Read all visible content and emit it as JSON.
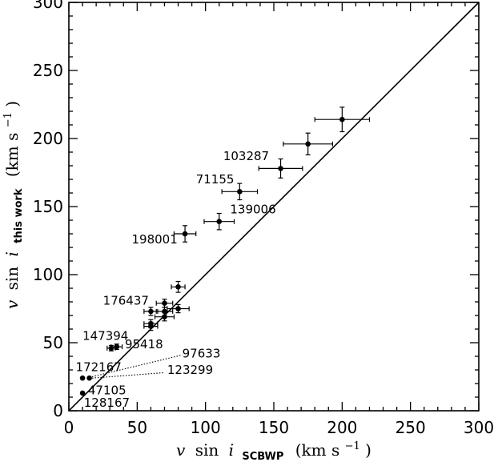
{
  "chart_data": {
    "type": "scatter",
    "xlim": [
      0,
      300
    ],
    "ylim": [
      0,
      300
    ],
    "xticks": [
      "0",
      "50",
      "100",
      "150",
      "200",
      "250",
      "300"
    ],
    "yticks": [
      "0",
      "50",
      "100",
      "150",
      "200",
      "250",
      "300"
    ],
    "xlabel": {
      "var": "v",
      "mid": "sin",
      "inc": "i",
      "sub": "SCBWP",
      "unit": "(km s",
      "exp": "−1",
      "close": ")"
    },
    "ylabel": {
      "var": "v",
      "mid": "sin",
      "inc": "i",
      "sub": "this work",
      "unit": "(km s",
      "exp": "−1",
      "close": ")"
    },
    "reference_line": {
      "type": "one-to-one",
      "from": [
        0,
        0
      ],
      "to": [
        300,
        300
      ]
    },
    "points": [
      {
        "x": 200,
        "y": 214,
        "xerr": 20,
        "yerr": 9
      },
      {
        "x": 175,
        "y": 196,
        "xerr": 18,
        "yerr": 8
      },
      {
        "x": 155,
        "y": 178,
        "xerr": 16,
        "yerr": 7
      },
      {
        "x": 125,
        "y": 161,
        "xerr": 13,
        "yerr": 6
      },
      {
        "x": 110,
        "y": 139,
        "xerr": 11,
        "yerr": 6
      },
      {
        "x": 85,
        "y": 130,
        "xerr": 8,
        "yerr": 6
      },
      {
        "x": 80,
        "y": 91,
        "xerr": 5,
        "yerr": 4
      },
      {
        "x": 70,
        "y": 79,
        "xerr": 6,
        "yerr": 3
      },
      {
        "x": 60,
        "y": 73,
        "xerr": 5,
        "yerr": 3
      },
      {
        "x": 70,
        "y": 73,
        "xerr": 6,
        "yerr": 3
      },
      {
        "x": 80,
        "y": 75,
        "xerr": 8,
        "yerr": 3
      },
      {
        "x": 70,
        "y": 69,
        "xerr": 7,
        "yerr": 3
      },
      {
        "x": 60,
        "y": 64,
        "xerr": 5,
        "yerr": 3
      },
      {
        "x": 60,
        "y": 62,
        "xerr": 5,
        "yerr": 3
      },
      {
        "x": 35,
        "y": 47,
        "xerr": 4,
        "yerr": 2
      },
      {
        "x": 31,
        "y": 46,
        "xerr": 3,
        "yerr": 2
      },
      {
        "x": 15,
        "y": 24,
        "xerr": 0,
        "yerr": 0
      },
      {
        "x": 10,
        "y": 24,
        "xerr": 0,
        "yerr": 0
      },
      {
        "x": 10,
        "y": 13,
        "xerr": 0,
        "yerr": 0
      }
    ],
    "labels": [
      {
        "text": "103287",
        "x": 113,
        "y": 184
      },
      {
        "text": "71155",
        "x": 93,
        "y": 167
      },
      {
        "text": "139006",
        "x": 118,
        "y": 145
      },
      {
        "text": "198001",
        "x": 46,
        "y": 123
      },
      {
        "text": "176437",
        "x": 25,
        "y": 78
      },
      {
        "text": "147394",
        "x": 10,
        "y": 52
      },
      {
        "text": "95418",
        "x": 41,
        "y": 46
      },
      {
        "text": "97633",
        "x": 83,
        "y": 39
      },
      {
        "text": "172167",
        "x": 5,
        "y": 29
      },
      {
        "text": "123299",
        "x": 72,
        "y": 27
      },
      {
        "text": "47105",
        "x": 14,
        "y": 12
      },
      {
        "text": "128167",
        "x": 11,
        "y": 3
      }
    ],
    "leaders": [
      {
        "from": [
          17,
          25
        ],
        "to": [
          83,
          41
        ]
      },
      {
        "from": [
          17,
          24
        ],
        "to": [
          70,
          28
        ]
      }
    ]
  }
}
